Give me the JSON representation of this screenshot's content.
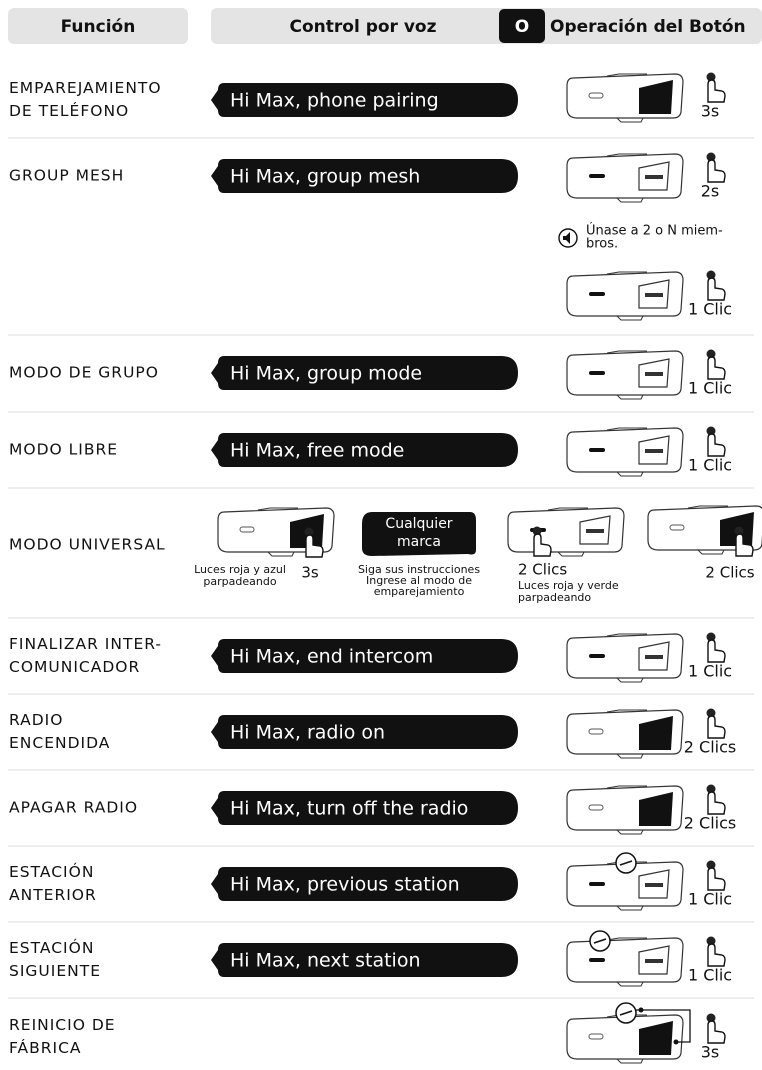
{
  "header": {
    "function": "Función",
    "voice": "Control por voz",
    "button_key": "O",
    "button": "Operación del Botón"
  },
  "rows": [
    {
      "function": [
        "EMPAREJAMIENTO",
        "DE TELÉFONO"
      ],
      "voice": "Hi Max, phone pairing",
      "actions": [
        "3s"
      ]
    },
    {
      "function": [
        "GROUP MESH"
      ],
      "voice": "Hi Max, group mesh",
      "actions": [
        "2s",
        "1 Clic"
      ],
      "note": [
        "Únase a 2 o N miem-",
        "bros."
      ]
    },
    {
      "function": [
        "MODO DE GRUPO"
      ],
      "voice": "Hi Max, group mode",
      "actions": [
        "1 Clic"
      ]
    },
    {
      "function": [
        "MODO LIBRE"
      ],
      "voice": "Hi Max, free mode",
      "actions": [
        "1 Clic"
      ]
    },
    {
      "function": [
        "MODO UNIVERSAL"
      ],
      "steps": [
        {
          "caption": [
            "Luces roja y azul",
            "parpadeando"
          ],
          "action": "3s"
        },
        {
          "badge": [
            "Cualquier",
            "marca"
          ],
          "caption": [
            "Siga sus instrucciones",
            "Ingrese al modo de",
            "emparejamiento"
          ]
        },
        {
          "action": "2 Clics",
          "caption": [
            "Luces roja y verde",
            "parpadeando"
          ]
        },
        {
          "action": "2 Clics"
        }
      ]
    },
    {
      "function": [
        "FINALIZAR INTER-",
        "COMUNICADOR"
      ],
      "voice": "Hi Max, end intercom",
      "actions": [
        "1 Clic"
      ]
    },
    {
      "function": [
        "RADIO",
        "ENCENDIDA"
      ],
      "voice": "Hi Max, radio on",
      "actions": [
        "2 Clics"
      ]
    },
    {
      "function": [
        "APAGAR RADIO"
      ],
      "voice": "Hi Max, turn off the radio",
      "actions": [
        "2 Clics"
      ]
    },
    {
      "function": [
        "ESTACIÓN",
        "ANTERIOR"
      ],
      "voice": "Hi Max, previous station",
      "actions": [
        "1 Clic"
      ]
    },
    {
      "function": [
        "ESTACIÓN",
        "SIGUIENTE"
      ],
      "voice": "Hi Max, next station",
      "actions": [
        "1 Clic"
      ]
    },
    {
      "function": [
        "REINICIO DE",
        "FÁBRICA"
      ],
      "actions": [
        "3s"
      ]
    }
  ]
}
